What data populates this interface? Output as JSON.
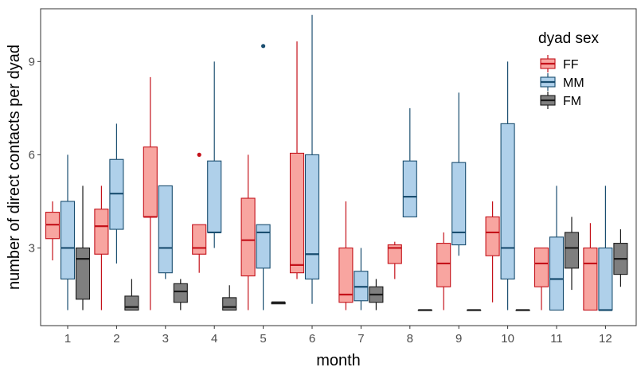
{
  "chart_data": {
    "type": "boxplot",
    "title": "",
    "xlabel": "month",
    "ylabel": "number of direct contacts per dyad",
    "categories": [
      "1",
      "2",
      "3",
      "4",
      "5",
      "6",
      "7",
      "8",
      "9",
      "10",
      "11",
      "12"
    ],
    "ylim": [
      0.5,
      10.7
    ],
    "yticks": [
      3,
      6,
      9
    ],
    "grid": false,
    "legend": {
      "title": "dyad sex",
      "position": "top-right"
    },
    "series": [
      {
        "name": "FF",
        "fill": "#f8a5a0",
        "stroke": "#c4121a",
        "boxes": [
          {
            "month": "1",
            "min": 2.6,
            "q1": 3.3,
            "median": 3.75,
            "q3": 4.15,
            "max": 4.5,
            "outliers": []
          },
          {
            "month": "2",
            "min": 1.0,
            "q1": 2.8,
            "median": 3.7,
            "q3": 4.25,
            "max": 5.0,
            "outliers": []
          },
          {
            "month": "3",
            "min": 1.0,
            "q1": 4.0,
            "median": 4.0,
            "q3": 6.25,
            "max": 8.5,
            "outliers": []
          },
          {
            "month": "4",
            "min": 2.2,
            "q1": 2.8,
            "median": 3.0,
            "q3": 3.75,
            "max": 3.75,
            "outliers": [
              6.0
            ]
          },
          {
            "month": "5",
            "min": 1.0,
            "q1": 2.1,
            "median": 3.25,
            "q3": 4.6,
            "max": 6.0,
            "outliers": []
          },
          {
            "month": "6",
            "min": 2.0,
            "q1": 2.2,
            "median": 2.45,
            "q3": 6.05,
            "max": 9.65,
            "outliers": []
          },
          {
            "month": "7",
            "min": 1.0,
            "q1": 1.25,
            "median": 1.5,
            "q3": 3.0,
            "max": 4.5,
            "outliers": []
          },
          {
            "month": "8",
            "min": 2.0,
            "q1": 2.5,
            "median": 3.0,
            "q3": 3.1,
            "max": 3.2,
            "outliers": []
          },
          {
            "month": "9",
            "min": 1.0,
            "q1": 1.75,
            "median": 2.5,
            "q3": 3.15,
            "max": 3.5,
            "outliers": []
          },
          {
            "month": "10",
            "min": 1.25,
            "q1": 2.75,
            "median": 3.5,
            "q3": 4.0,
            "max": 4.5,
            "outliers": []
          },
          {
            "month": "11",
            "min": 1.0,
            "q1": 1.75,
            "median": 2.5,
            "q3": 3.0,
            "max": 3.0,
            "outliers": []
          },
          {
            "month": "12",
            "min": 1.0,
            "q1": 1.0,
            "median": 2.5,
            "q3": 3.0,
            "max": 3.8,
            "outliers": []
          }
        ]
      },
      {
        "name": "MM",
        "fill": "#afd0ea",
        "stroke": "#1a4e70",
        "boxes": [
          {
            "month": "1",
            "min": 1.0,
            "q1": 2.0,
            "median": 3.0,
            "q3": 4.5,
            "max": 6.0,
            "outliers": []
          },
          {
            "month": "2",
            "min": 2.5,
            "q1": 3.6,
            "median": 4.75,
            "q3": 5.85,
            "max": 7.0,
            "outliers": []
          },
          {
            "month": "3",
            "min": 2.0,
            "q1": 2.2,
            "median": 3.0,
            "q3": 5.0,
            "max": 5.0,
            "outliers": []
          },
          {
            "month": "4",
            "min": 3.0,
            "q1": 3.5,
            "median": 3.5,
            "q3": 5.8,
            "max": 9.0,
            "outliers": []
          },
          {
            "month": "5",
            "min": 1.0,
            "q1": 2.35,
            "median": 3.5,
            "q3": 3.75,
            "max": 3.75,
            "outliers": [
              9.5
            ]
          },
          {
            "month": "6",
            "min": 1.2,
            "q1": 2.0,
            "median": 2.8,
            "q3": 6.0,
            "max": 10.5,
            "outliers": []
          },
          {
            "month": "7",
            "min": 1.0,
            "q1": 1.3,
            "median": 1.75,
            "q3": 2.25,
            "max": 3.0,
            "outliers": []
          },
          {
            "month": "8",
            "min": 4.0,
            "q1": 4.0,
            "median": 4.65,
            "q3": 5.8,
            "max": 7.5,
            "outliers": []
          },
          {
            "month": "9",
            "min": 2.75,
            "q1": 3.1,
            "median": 3.5,
            "q3": 5.75,
            "max": 8.0,
            "outliers": []
          },
          {
            "month": "10",
            "min": 1.0,
            "q1": 2.0,
            "median": 3.0,
            "q3": 7.0,
            "max": 9.0,
            "outliers": []
          },
          {
            "month": "11",
            "min": 1.0,
            "q1": 1.0,
            "median": 2.0,
            "q3": 3.35,
            "max": 5.0,
            "outliers": []
          },
          {
            "month": "12",
            "min": 1.0,
            "q1": 1.0,
            "median": 1.0,
            "q3": 3.0,
            "max": 5.0,
            "outliers": []
          }
        ]
      },
      {
        "name": "FM",
        "fill": "#7f7f7f",
        "stroke": "#1a1a1a",
        "boxes": [
          {
            "month": "1",
            "min": 1.0,
            "q1": 1.35,
            "median": 2.65,
            "q3": 3.0,
            "max": 5.0,
            "outliers": []
          },
          {
            "month": "2",
            "min": 1.0,
            "q1": 1.0,
            "median": 1.1,
            "q3": 1.45,
            "max": 2.0,
            "outliers": []
          },
          {
            "month": "3",
            "min": 1.0,
            "q1": 1.25,
            "median": 1.6,
            "q3": 1.85,
            "max": 2.0,
            "outliers": []
          },
          {
            "month": "4",
            "min": 1.0,
            "q1": 1.0,
            "median": 1.1,
            "q3": 1.4,
            "max": 1.8,
            "outliers": []
          },
          {
            "month": "5",
            "min": 1.2,
            "q1": 1.2,
            "median": 1.25,
            "q3": 1.25,
            "max": 1.25,
            "outliers": []
          },
          {
            "month": "7",
            "min": 1.0,
            "q1": 1.25,
            "median": 1.5,
            "q3": 1.75,
            "max": 2.0,
            "outliers": []
          },
          {
            "month": "8",
            "min": 1.0,
            "q1": 1.0,
            "median": 1.0,
            "q3": 1.0,
            "max": 1.0,
            "outliers": []
          },
          {
            "month": "9",
            "min": 1.0,
            "q1": 1.0,
            "median": 1.0,
            "q3": 1.0,
            "max": 1.0,
            "outliers": []
          },
          {
            "month": "10",
            "min": 1.0,
            "q1": 1.0,
            "median": 1.0,
            "q3": 1.0,
            "max": 1.0,
            "outliers": []
          },
          {
            "month": "11",
            "min": 1.65,
            "q1": 2.35,
            "median": 3.0,
            "q3": 3.5,
            "max": 4.0,
            "outliers": []
          },
          {
            "month": "12",
            "min": 1.75,
            "q1": 2.15,
            "median": 2.65,
            "q3": 3.15,
            "max": 3.6,
            "outliers": []
          }
        ]
      }
    ]
  }
}
